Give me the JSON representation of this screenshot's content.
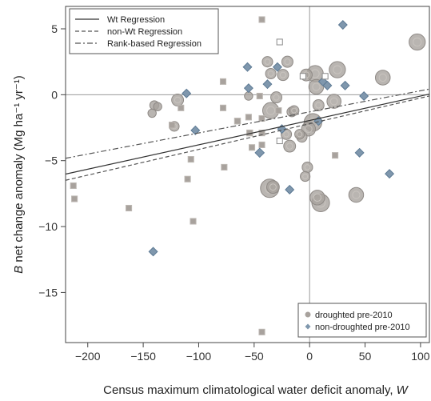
{
  "chart_data": {
    "type": "scatter",
    "xlabel": "Census maximum climatological water deficit anomaly, W",
    "ylabel": "B net change anomaly (Mg ha⁻¹ yr⁻¹)",
    "xlim": [
      -220,
      108
    ],
    "ylim": [
      -18.8,
      6.7
    ],
    "x_ticks": [
      -200,
      -150,
      -100,
      -50,
      0,
      50,
      100
    ],
    "y_ticks": [
      -15,
      -10,
      -5,
      0,
      5
    ],
    "grid": false,
    "reference_lines": {
      "x": 0,
      "y": 0
    },
    "legend_lines_position": "top-left",
    "legend_groups_position": "bottom-right",
    "lines": [
      {
        "name": "Wt Regression",
        "style": "solid",
        "color": "#333333",
        "intercept": -1.95,
        "slope": 0.0185
      },
      {
        "name": "non-Wt Regression",
        "style": "dashed",
        "color": "#555555",
        "intercept": -2.2,
        "slope": 0.0195
      },
      {
        "name": "Rank-based Regression",
        "style": "dashdot",
        "color": "#555555",
        "intercept": -1.3,
        "slope": 0.016
      }
    ],
    "groups": [
      {
        "name": "droughted pre-2010",
        "marker": "circle",
        "color": "#a8a29d"
      },
      {
        "name": "non-droughted pre-2010",
        "marker": "diamond",
        "color": "#7f97ad"
      }
    ],
    "points": [
      {
        "x": -213,
        "y": -6.9,
        "group": "droughted pre-2010",
        "shape": "square",
        "size": 0.25
      },
      {
        "x": -212,
        "y": -7.9,
        "group": "droughted pre-2010",
        "shape": "square",
        "size": 0.25
      },
      {
        "x": -163,
        "y": -8.6,
        "group": "droughted pre-2010",
        "shape": "square",
        "size": 0.25
      },
      {
        "x": -142,
        "y": -1.4,
        "group": "droughted pre-2010",
        "shape": "circle",
        "size": 0.3
      },
      {
        "x": -140,
        "y": -0.8,
        "group": "droughted pre-2010",
        "shape": "circle",
        "size": 0.35
      },
      {
        "x": -137,
        "y": -0.9,
        "group": "droughted pre-2010",
        "shape": "circle",
        "size": 0.3
      },
      {
        "x": -135,
        "y": 5.6,
        "group": "droughted pre-2010",
        "shape": "square",
        "size": 0.25
      },
      {
        "x": -124,
        "y": -2.3,
        "group": "droughted pre-2010",
        "shape": "square",
        "size": 0.3
      },
      {
        "x": -122,
        "y": -2.4,
        "group": "droughted pre-2010",
        "shape": "circle",
        "size": 0.4
      },
      {
        "x": -119,
        "y": -0.4,
        "group": "droughted pre-2010",
        "shape": "circle",
        "size": 0.55
      },
      {
        "x": -116,
        "y": -1.0,
        "group": "droughted pre-2010",
        "shape": "square",
        "size": 0.25
      },
      {
        "x": -110,
        "y": -6.4,
        "group": "droughted pre-2010",
        "shape": "square",
        "size": 0.25
      },
      {
        "x": -107,
        "y": -4.9,
        "group": "droughted pre-2010",
        "shape": "square",
        "size": 0.25
      },
      {
        "x": -105,
        "y": -9.6,
        "group": "droughted pre-2010",
        "shape": "square",
        "size": 0.25
      },
      {
        "x": -78,
        "y": 1.0,
        "group": "droughted pre-2010",
        "shape": "square",
        "size": 0.25
      },
      {
        "x": -78,
        "y": -1.0,
        "group": "droughted pre-2010",
        "shape": "square",
        "size": 0.25
      },
      {
        "x": -77,
        "y": -5.5,
        "group": "droughted pre-2010",
        "shape": "square",
        "size": 0.25
      },
      {
        "x": -65,
        "y": -2.0,
        "group": "droughted pre-2010",
        "shape": "square",
        "size": 0.3
      },
      {
        "x": -55,
        "y": -0.1,
        "group": "droughted pre-2010",
        "shape": "circle",
        "size": 0.3
      },
      {
        "x": -55,
        "y": -1.7,
        "group": "droughted pre-2010",
        "shape": "square",
        "size": 0.25
      },
      {
        "x": -54,
        "y": -2.9,
        "group": "droughted pre-2010",
        "shape": "square",
        "size": 0.3
      },
      {
        "x": -52,
        "y": -4.0,
        "group": "droughted pre-2010",
        "shape": "square",
        "size": 0.25
      },
      {
        "x": -45,
        "y": -0.1,
        "group": "droughted pre-2010",
        "shape": "square",
        "size": 0.25
      },
      {
        "x": -43,
        "y": 5.7,
        "group": "droughted pre-2010",
        "shape": "square",
        "size": 0.25
      },
      {
        "x": -43,
        "y": -1.8,
        "group": "droughted pre-2010",
        "shape": "square",
        "size": 0.25
      },
      {
        "x": -43,
        "y": -2.9,
        "group": "droughted pre-2010",
        "shape": "square",
        "size": 0.25
      },
      {
        "x": -43,
        "y": -3.8,
        "group": "droughted pre-2010",
        "shape": "square",
        "size": 0.25
      },
      {
        "x": -43,
        "y": -18.0,
        "group": "droughted pre-2010",
        "shape": "square",
        "size": 0.25
      },
      {
        "x": -38,
        "y": 2.5,
        "group": "droughted pre-2010",
        "shape": "circle",
        "size": 0.45
      },
      {
        "x": -36,
        "y": -7.1,
        "group": "droughted pre-2010",
        "shape": "circle",
        "size": 1.0
      },
      {
        "x": -35,
        "y": 1.6,
        "group": "droughted pre-2010",
        "shape": "circle",
        "size": 0.45
      },
      {
        "x": -35,
        "y": -1.2,
        "group": "droughted pre-2010",
        "shape": "circle",
        "size": 0.85
      },
      {
        "x": -33,
        "y": -7.0,
        "group": "droughted pre-2010",
        "shape": "circle",
        "size": 0.6
      },
      {
        "x": -30,
        "y": -0.2,
        "group": "droughted pre-2010",
        "shape": "circle",
        "size": 0.5
      },
      {
        "x": -28,
        "y": -1.2,
        "group": "droughted pre-2010",
        "shape": "square",
        "size": 0.25
      },
      {
        "x": -27,
        "y": 4.0,
        "group": "droughted pre-2010",
        "shape": "square_open",
        "size": 0.25
      },
      {
        "x": -27,
        "y": -3.5,
        "group": "droughted pre-2010",
        "shape": "square_open",
        "size": 0.25
      },
      {
        "x": -24,
        "y": 1.5,
        "group": "droughted pre-2010",
        "shape": "circle",
        "size": 0.5
      },
      {
        "x": -21,
        "y": -3.0,
        "group": "droughted pre-2010",
        "shape": "circle",
        "size": 0.45
      },
      {
        "x": -20,
        "y": 2.5,
        "group": "droughted pre-2010",
        "shape": "circle",
        "size": 0.5
      },
      {
        "x": -18,
        "y": -3.9,
        "group": "droughted pre-2010",
        "shape": "circle",
        "size": 0.55
      },
      {
        "x": -16,
        "y": -1.3,
        "group": "droughted pre-2010",
        "shape": "circle",
        "size": 0.4
      },
      {
        "x": -14,
        "y": -1.2,
        "group": "droughted pre-2010",
        "shape": "circle",
        "size": 0.4
      },
      {
        "x": -9,
        "y": -3.0,
        "group": "droughted pre-2010",
        "shape": "circle",
        "size": 0.4
      },
      {
        "x": -7,
        "y": -3.2,
        "group": "droughted pre-2010",
        "shape": "circle",
        "size": 0.45
      },
      {
        "x": -6,
        "y": 1.4,
        "group": "droughted pre-2010",
        "shape": "square_open",
        "size": 0.25
      },
      {
        "x": -4,
        "y": -6.2,
        "group": "droughted pre-2010",
        "shape": "circle",
        "size": 0.4
      },
      {
        "x": -3,
        "y": 1.5,
        "group": "droughted pre-2010",
        "shape": "circle",
        "size": 0.55
      },
      {
        "x": -2,
        "y": -5.5,
        "group": "droughted pre-2010",
        "shape": "circle",
        "size": 0.45
      },
      {
        "x": -1,
        "y": -2.6,
        "group": "droughted pre-2010",
        "shape": "circle",
        "size": 0.7
      },
      {
        "x": 3,
        "y": -2.1,
        "group": "droughted pre-2010",
        "shape": "circle",
        "size": 0.95
      },
      {
        "x": 5,
        "y": 1.6,
        "group": "droughted pre-2010",
        "shape": "circle",
        "size": 0.85
      },
      {
        "x": 6,
        "y": 0.6,
        "group": "droughted pre-2010",
        "shape": "circle",
        "size": 0.75
      },
      {
        "x": 7,
        "y": -7.8,
        "group": "droughted pre-2010",
        "shape": "circle",
        "size": 0.75
      },
      {
        "x": 8,
        "y": -0.8,
        "group": "droughted pre-2010",
        "shape": "circle",
        "size": 0.5
      },
      {
        "x": 10,
        "y": -8.2,
        "group": "droughted pre-2010",
        "shape": "circle",
        "size": 0.95
      },
      {
        "x": 14,
        "y": 1.4,
        "group": "droughted pre-2010",
        "shape": "square_open",
        "size": 0.25
      },
      {
        "x": 22,
        "y": -0.5,
        "group": "droughted pre-2010",
        "shape": "circle",
        "size": 0.7
      },
      {
        "x": 23,
        "y": -4.6,
        "group": "droughted pre-2010",
        "shape": "square",
        "size": 0.25
      },
      {
        "x": 25,
        "y": 1.9,
        "group": "droughted pre-2010",
        "shape": "circle",
        "size": 0.85
      },
      {
        "x": 42,
        "y": -7.6,
        "group": "droughted pre-2010",
        "shape": "circle",
        "size": 0.75
      },
      {
        "x": 66,
        "y": 1.3,
        "group": "droughted pre-2010",
        "shape": "circle",
        "size": 0.75
      },
      {
        "x": 97,
        "y": 4.0,
        "group": "droughted pre-2010",
        "shape": "circle",
        "size": 0.85
      },
      {
        "x": -141,
        "y": -11.9,
        "group": "non-droughted pre-2010",
        "shape": "diamond",
        "size": 0.3
      },
      {
        "x": -111,
        "y": 0.1,
        "group": "non-droughted pre-2010",
        "shape": "diamond",
        "size": 0.3
      },
      {
        "x": -103,
        "y": -2.7,
        "group": "non-droughted pre-2010",
        "shape": "diamond",
        "size": 0.3
      },
      {
        "x": -56,
        "y": 2.1,
        "group": "non-droughted pre-2010",
        "shape": "diamond",
        "size": 0.3
      },
      {
        "x": -55,
        "y": 0.5,
        "group": "non-droughted pre-2010",
        "shape": "diamond",
        "size": 0.3
      },
      {
        "x": -45,
        "y": -4.4,
        "group": "non-droughted pre-2010",
        "shape": "diamond",
        "size": 0.35
      },
      {
        "x": -38,
        "y": 0.8,
        "group": "non-droughted pre-2010",
        "shape": "diamond",
        "size": 0.3
      },
      {
        "x": -29,
        "y": 2.1,
        "group": "non-droughted pre-2010",
        "shape": "diamond",
        "size": 0.3
      },
      {
        "x": -25,
        "y": -2.6,
        "group": "non-droughted pre-2010",
        "shape": "diamond",
        "size": 0.3
      },
      {
        "x": -18,
        "y": -7.2,
        "group": "non-droughted pre-2010",
        "shape": "diamond",
        "size": 0.3
      },
      {
        "x": 8,
        "y": -2.0,
        "group": "non-droughted pre-2010",
        "shape": "diamond",
        "size": 0.3
      },
      {
        "x": 12,
        "y": 1.0,
        "group": "non-droughted pre-2010",
        "shape": "diamond",
        "size": 0.3
      },
      {
        "x": 16,
        "y": 0.7,
        "group": "non-droughted pre-2010",
        "shape": "diamond",
        "size": 0.3
      },
      {
        "x": 30,
        "y": 5.3,
        "group": "non-droughted pre-2010",
        "shape": "diamond",
        "size": 0.3
      },
      {
        "x": 32,
        "y": 0.7,
        "group": "non-droughted pre-2010",
        "shape": "diamond",
        "size": 0.3
      },
      {
        "x": 45,
        "y": -4.4,
        "group": "non-droughted pre-2010",
        "shape": "diamond",
        "size": 0.3
      },
      {
        "x": 49,
        "y": -0.1,
        "group": "non-droughted pre-2010",
        "shape": "diamond",
        "size": 0.3
      },
      {
        "x": 72,
        "y": -6.0,
        "group": "non-droughted pre-2010",
        "shape": "diamond",
        "size": 0.3
      }
    ]
  }
}
